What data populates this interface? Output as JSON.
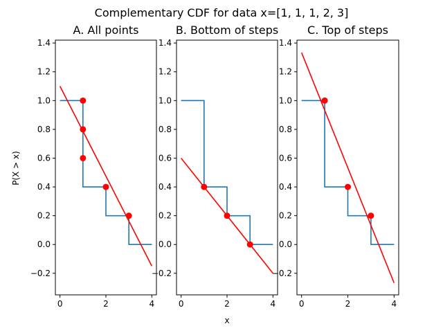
{
  "figure": {
    "suptitle": "Complementary CDF for data x=[1, 1, 1, 2, 3]",
    "xlabel": "x",
    "ylabel": "P(X > x)"
  },
  "colors": {
    "step": "#1f77b4",
    "points": "#ff0000",
    "fit": "#ff0000"
  },
  "chart_data": [
    {
      "type": "line",
      "title": "A. All points",
      "xlim": [
        -0.2,
        4.2
      ],
      "ylim": [
        -0.35,
        1.42
      ],
      "xticks": [
        0,
        2,
        4
      ],
      "yticks": [
        -0.2,
        0.0,
        0.2,
        0.4,
        0.6,
        0.8,
        1.0,
        1.2,
        1.4
      ],
      "ytick_labels": [
        "−0.2",
        "0.0",
        "0.2",
        "0.4",
        "0.6",
        "0.8",
        "1.0",
        "1.2",
        "1.4"
      ],
      "step": {
        "x": [
          0,
          1,
          1,
          2,
          2,
          3,
          3,
          4
        ],
        "y": [
          1.0,
          1.0,
          0.4,
          0.4,
          0.2,
          0.2,
          0.0,
          0.0
        ]
      },
      "points": {
        "x": [
          1,
          1,
          1,
          2,
          3
        ],
        "y": [
          1.0,
          0.8,
          0.6,
          0.4,
          0.2
        ]
      },
      "fit": {
        "x": [
          0,
          4
        ],
        "y": [
          1.1,
          -0.15
        ]
      }
    },
    {
      "type": "line",
      "title": "B. Bottom of steps",
      "xlim": [
        -0.2,
        4.2
      ],
      "ylim": [
        -0.35,
        1.42
      ],
      "xticks": [
        0,
        2,
        4
      ],
      "yticks": [
        -0.2,
        0.0,
        0.2,
        0.4,
        0.6,
        0.8,
        1.0,
        1.2,
        1.4
      ],
      "ytick_labels": [
        "−0.2",
        "0.0",
        "0.2",
        "0.4",
        "0.6",
        "0.8",
        "1.0",
        "1.2",
        "1.4"
      ],
      "step": {
        "x": [
          0,
          1,
          1,
          2,
          2,
          3,
          3,
          4
        ],
        "y": [
          1.0,
          1.0,
          0.4,
          0.4,
          0.2,
          0.2,
          0.0,
          0.0
        ]
      },
      "points": {
        "x": [
          1,
          2,
          3
        ],
        "y": [
          0.4,
          0.2,
          0.0
        ]
      },
      "fit": {
        "x": [
          0,
          4
        ],
        "y": [
          0.6,
          -0.2
        ]
      }
    },
    {
      "type": "line",
      "title": "C. Top of steps",
      "xlim": [
        -0.2,
        4.2
      ],
      "ylim": [
        -0.35,
        1.42
      ],
      "xticks": [
        0,
        2,
        4
      ],
      "yticks": [
        -0.2,
        0.0,
        0.2,
        0.4,
        0.6,
        0.8,
        1.0,
        1.2,
        1.4
      ],
      "ytick_labels": [
        "−0.2",
        "0.0",
        "0.2",
        "0.4",
        "0.6",
        "0.8",
        "1.0",
        "1.2",
        "1.4"
      ],
      "step": {
        "x": [
          0,
          1,
          1,
          2,
          2,
          3,
          3,
          4
        ],
        "y": [
          1.0,
          1.0,
          0.4,
          0.4,
          0.2,
          0.2,
          0.0,
          0.0
        ]
      },
      "points": {
        "x": [
          1,
          2,
          3
        ],
        "y": [
          1.0,
          0.4,
          0.2
        ]
      },
      "fit": {
        "x": [
          0,
          4
        ],
        "y": [
          1.333,
          -0.267
        ]
      }
    }
  ]
}
